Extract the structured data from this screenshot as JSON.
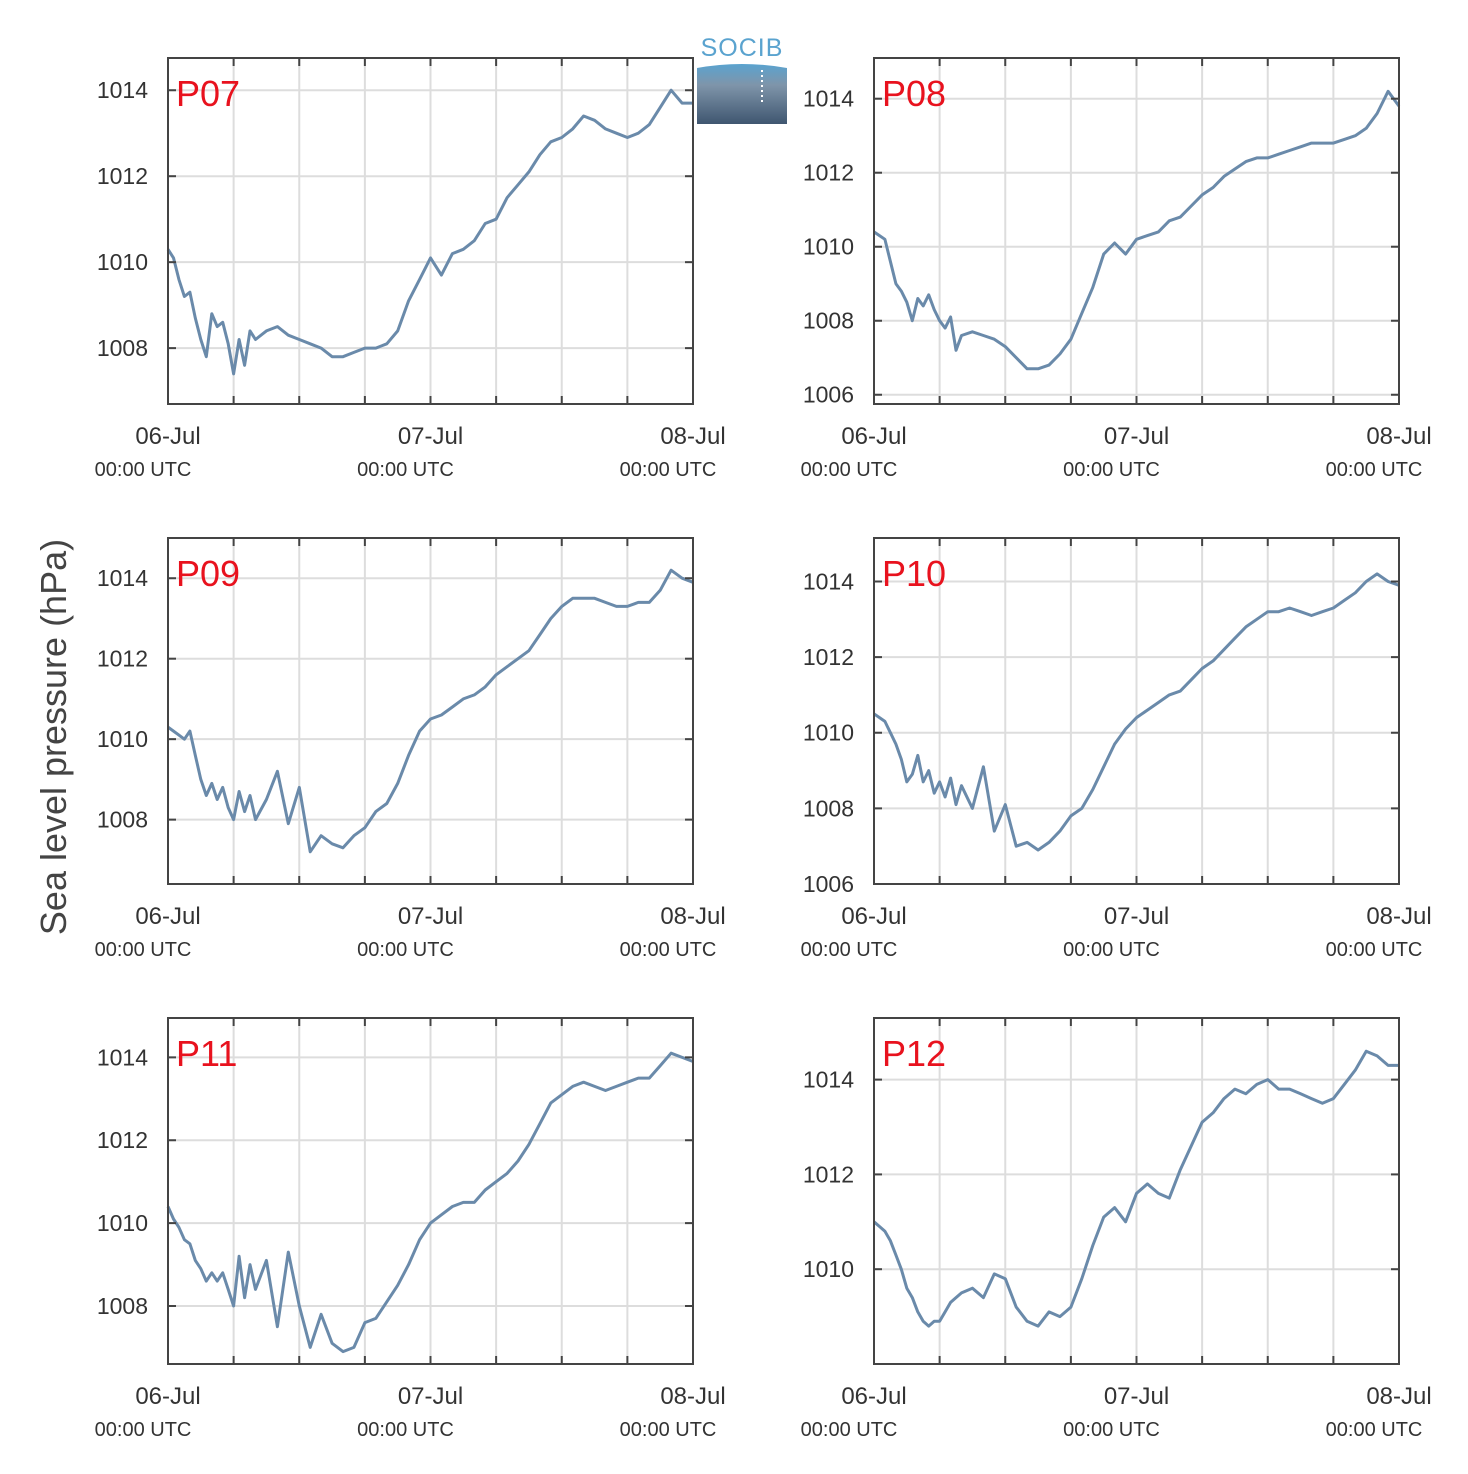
{
  "ylabel": "Sea level pressure (hPa)",
  "logo": {
    "text": "SOCIB",
    "colors": [
      "#5aa3cf",
      "#3f5670"
    ]
  },
  "style": {
    "line_color": "#6a8aaa",
    "grid_color": "#dddddd",
    "frame_color": "#444444",
    "label_color": "#e8121e"
  },
  "chart_data": [
    {
      "type": "line",
      "name": "P07",
      "x_unit": "hours since 06-Jul 00:00 UTC",
      "xlim": [
        0,
        48
      ],
      "ylim": [
        1006.7,
        1014.75
      ],
      "yticks": [
        1008,
        1010,
        1012,
        1014
      ],
      "xticks": [
        {
          "hour": 0,
          "date": "06-Jul",
          "time": "00:00 UTC"
        },
        {
          "hour": 24,
          "date": "07-Jul",
          "time": "00:00 UTC"
        },
        {
          "hour": 48,
          "date": "08-Jul",
          "time": "00:00 UTC"
        }
      ],
      "x": [
        0,
        0.5,
        1,
        1.5,
        2,
        2.5,
        3,
        3.5,
        4,
        4.5,
        5,
        5.5,
        6,
        6.5,
        7,
        7.5,
        8,
        9,
        10,
        11,
        12,
        13,
        14,
        15,
        16,
        17,
        18,
        19,
        20,
        21,
        22,
        23,
        24,
        25,
        26,
        27,
        28,
        29,
        30,
        31,
        32,
        33,
        34,
        35,
        36,
        37,
        38,
        39,
        40,
        41,
        42,
        43,
        44,
        45,
        46,
        47,
        48
      ],
      "y": [
        1010.3,
        1010.1,
        1009.6,
        1009.2,
        1009.3,
        1008.7,
        1008.2,
        1007.8,
        1008.8,
        1008.5,
        1008.6,
        1008.1,
        1007.4,
        1008.2,
        1007.6,
        1008.4,
        1008.2,
        1008.4,
        1008.5,
        1008.3,
        1008.2,
        1008.1,
        1008.0,
        1007.8,
        1007.8,
        1007.9,
        1008.0,
        1008.0,
        1008.1,
        1008.4,
        1009.1,
        1009.6,
        1010.1,
        1009.7,
        1010.2,
        1010.3,
        1010.5,
        1010.9,
        1011.0,
        1011.5,
        1011.8,
        1012.1,
        1012.5,
        1012.8,
        1012.9,
        1013.1,
        1013.4,
        1013.3,
        1013.1,
        1013.0,
        1012.9,
        1013.0,
        1013.2,
        1013.6,
        1014.0,
        1013.7,
        1013.7
      ]
    },
    {
      "type": "line",
      "name": "P08",
      "x_unit": "hours since 06-Jul 00:00 UTC",
      "xlim": [
        0,
        48
      ],
      "ylim": [
        1005.75,
        1015.1
      ],
      "yticks": [
        1006,
        1008,
        1010,
        1012,
        1014
      ],
      "xticks": [
        {
          "hour": 0,
          "date": "06-Jul",
          "time": "00:00 UTC"
        },
        {
          "hour": 24,
          "date": "07-Jul",
          "time": "00:00 UTC"
        },
        {
          "hour": 48,
          "date": "08-Jul",
          "time": "00:00 UTC"
        }
      ],
      "x": [
        0,
        0.5,
        1,
        1.5,
        2,
        2.5,
        3,
        3.5,
        4,
        4.5,
        5,
        5.5,
        6,
        6.5,
        7,
        7.5,
        8,
        9,
        10,
        11,
        12,
        13,
        14,
        15,
        16,
        17,
        18,
        19,
        20,
        21,
        22,
        23,
        24,
        25,
        26,
        27,
        28,
        29,
        30,
        31,
        32,
        33,
        34,
        35,
        36,
        37,
        38,
        39,
        40,
        41,
        42,
        43,
        44,
        45,
        46,
        47,
        48
      ],
      "y": [
        1010.4,
        1010.3,
        1010.2,
        1009.6,
        1009.0,
        1008.8,
        1008.5,
        1008.0,
        1008.6,
        1008.4,
        1008.7,
        1008.3,
        1008.0,
        1007.8,
        1008.1,
        1007.2,
        1007.6,
        1007.7,
        1007.6,
        1007.5,
        1007.3,
        1007.0,
        1006.7,
        1006.7,
        1006.8,
        1007.1,
        1007.5,
        1008.2,
        1008.9,
        1009.8,
        1010.1,
        1009.8,
        1010.2,
        1010.3,
        1010.4,
        1010.7,
        1010.8,
        1011.1,
        1011.4,
        1011.6,
        1011.9,
        1012.1,
        1012.3,
        1012.4,
        1012.4,
        1012.5,
        1012.6,
        1012.7,
        1012.8,
        1012.8,
        1012.8,
        1012.9,
        1013.0,
        1013.2,
        1013.6,
        1014.2,
        1013.8
      ]
    },
    {
      "type": "line",
      "name": "P09",
      "x_unit": "hours since 06-Jul 00:00 UTC",
      "xlim": [
        0,
        48
      ],
      "ylim": [
        1006.4,
        1015.0
      ],
      "yticks": [
        1008,
        1010,
        1012,
        1014
      ],
      "xticks": [
        {
          "hour": 0,
          "date": "06-Jul",
          "time": "00:00 UTC"
        },
        {
          "hour": 24,
          "date": "07-Jul",
          "time": "00:00 UTC"
        },
        {
          "hour": 48,
          "date": "08-Jul",
          "time": "00:00 UTC"
        }
      ],
      "x": [
        0,
        0.5,
        1,
        1.5,
        2,
        2.5,
        3,
        3.5,
        4,
        4.5,
        5,
        5.5,
        6,
        6.5,
        7,
        7.5,
        8,
        9,
        10,
        11,
        12,
        13,
        14,
        15,
        16,
        17,
        18,
        19,
        20,
        21,
        22,
        23,
        24,
        25,
        26,
        27,
        28,
        29,
        30,
        31,
        32,
        33,
        34,
        35,
        36,
        37,
        38,
        39,
        40,
        41,
        42,
        43,
        44,
        45,
        46,
        47,
        48
      ],
      "y": [
        1010.3,
        1010.2,
        1010.1,
        1010.0,
        1010.2,
        1009.6,
        1009.0,
        1008.6,
        1008.9,
        1008.5,
        1008.8,
        1008.3,
        1008.0,
        1008.7,
        1008.2,
        1008.6,
        1008.0,
        1008.5,
        1009.2,
        1007.9,
        1008.8,
        1007.2,
        1007.6,
        1007.4,
        1007.3,
        1007.6,
        1007.8,
        1008.2,
        1008.4,
        1008.9,
        1009.6,
        1010.2,
        1010.5,
        1010.6,
        1010.8,
        1011.0,
        1011.1,
        1011.3,
        1011.6,
        1011.8,
        1012.0,
        1012.2,
        1012.6,
        1013.0,
        1013.3,
        1013.5,
        1013.5,
        1013.5,
        1013.4,
        1013.3,
        1013.3,
        1013.4,
        1013.4,
        1013.7,
        1014.2,
        1014.0,
        1013.9
      ]
    },
    {
      "type": "line",
      "name": "P10",
      "x_unit": "hours since 06-Jul 00:00 UTC",
      "xlim": [
        0,
        48
      ],
      "ylim": [
        1006.0,
        1015.15
      ],
      "yticks": [
        1006,
        1008,
        1010,
        1012,
        1014
      ],
      "xticks": [
        {
          "hour": 0,
          "date": "06-Jul",
          "time": "00:00 UTC"
        },
        {
          "hour": 24,
          "date": "07-Jul",
          "time": "00:00 UTC"
        },
        {
          "hour": 48,
          "date": "08-Jul",
          "time": "00:00 UTC"
        }
      ],
      "x": [
        0,
        0.5,
        1,
        1.5,
        2,
        2.5,
        3,
        3.5,
        4,
        4.5,
        5,
        5.5,
        6,
        6.5,
        7,
        7.5,
        8,
        9,
        10,
        11,
        12,
        13,
        14,
        15,
        16,
        17,
        18,
        19,
        20,
        21,
        22,
        23,
        24,
        25,
        26,
        27,
        28,
        29,
        30,
        31,
        32,
        33,
        34,
        35,
        36,
        37,
        38,
        39,
        40,
        41,
        42,
        43,
        44,
        45,
        46,
        47,
        48
      ],
      "y": [
        1010.5,
        1010.4,
        1010.3,
        1010.0,
        1009.7,
        1009.3,
        1008.7,
        1008.9,
        1009.4,
        1008.7,
        1009.0,
        1008.4,
        1008.7,
        1008.3,
        1008.8,
        1008.1,
        1008.6,
        1008.0,
        1009.1,
        1007.4,
        1008.1,
        1007.0,
        1007.1,
        1006.9,
        1007.1,
        1007.4,
        1007.8,
        1008.0,
        1008.5,
        1009.1,
        1009.7,
        1010.1,
        1010.4,
        1010.6,
        1010.8,
        1011.0,
        1011.1,
        1011.4,
        1011.7,
        1011.9,
        1012.2,
        1012.5,
        1012.8,
        1013.0,
        1013.2,
        1013.2,
        1013.3,
        1013.2,
        1013.1,
        1013.2,
        1013.3,
        1013.5,
        1013.7,
        1014.0,
        1014.2,
        1014.0,
        1013.9
      ]
    },
    {
      "type": "line",
      "name": "P11",
      "x_unit": "hours since 06-Jul 00:00 UTC",
      "xlim": [
        0,
        48
      ],
      "ylim": [
        1006.6,
        1014.95
      ],
      "yticks": [
        1008,
        1010,
        1012,
        1014
      ],
      "xticks": [
        {
          "hour": 0,
          "date": "06-Jul",
          "time": "00:00 UTC"
        },
        {
          "hour": 24,
          "date": "07-Jul",
          "time": "00:00 UTC"
        },
        {
          "hour": 48,
          "date": "08-Jul",
          "time": "00:00 UTC"
        }
      ],
      "x": [
        0,
        0.5,
        1,
        1.5,
        2,
        2.5,
        3,
        3.5,
        4,
        4.5,
        5,
        5.5,
        6,
        6.5,
        7,
        7.5,
        8,
        9,
        10,
        11,
        12,
        13,
        14,
        15,
        16,
        17,
        18,
        19,
        20,
        21,
        22,
        23,
        24,
        25,
        26,
        27,
        28,
        29,
        30,
        31,
        32,
        33,
        34,
        35,
        36,
        37,
        38,
        39,
        40,
        41,
        42,
        43,
        44,
        45,
        46,
        47,
        48
      ],
      "y": [
        1010.4,
        1010.1,
        1009.9,
        1009.6,
        1009.5,
        1009.1,
        1008.9,
        1008.6,
        1008.8,
        1008.6,
        1008.8,
        1008.4,
        1008.0,
        1009.2,
        1008.2,
        1009.0,
        1008.4,
        1009.1,
        1007.5,
        1009.3,
        1008.0,
        1007.0,
        1007.8,
        1007.1,
        1006.9,
        1007.0,
        1007.6,
        1007.7,
        1008.1,
        1008.5,
        1009.0,
        1009.6,
        1010.0,
        1010.2,
        1010.4,
        1010.5,
        1010.5,
        1010.8,
        1011.0,
        1011.2,
        1011.5,
        1011.9,
        1012.4,
        1012.9,
        1013.1,
        1013.3,
        1013.4,
        1013.3,
        1013.2,
        1013.3,
        1013.4,
        1013.5,
        1013.5,
        1013.8,
        1014.1,
        1014.0,
        1013.9
      ]
    },
    {
      "type": "line",
      "name": "P12",
      "x_unit": "hours since 06-Jul 00:00 UTC",
      "xlim": [
        0,
        48
      ],
      "ylim": [
        1008.0,
        1015.3
      ],
      "yticks": [
        1010,
        1012,
        1014
      ],
      "xticks": [
        {
          "hour": 0,
          "date": "06-Jul",
          "time": "00:00 UTC"
        },
        {
          "hour": 24,
          "date": "07-Jul",
          "time": "00:00 UTC"
        },
        {
          "hour": 48,
          "date": "08-Jul",
          "time": "00:00 UTC"
        }
      ],
      "x": [
        0,
        0.5,
        1,
        1.5,
        2,
        2.5,
        3,
        3.5,
        4,
        4.5,
        5,
        5.5,
        6,
        6.5,
        7,
        7.5,
        8,
        9,
        10,
        11,
        12,
        13,
        14,
        15,
        16,
        17,
        18,
        19,
        20,
        21,
        22,
        23,
        24,
        25,
        26,
        27,
        28,
        29,
        30,
        31,
        32,
        33,
        34,
        35,
        36,
        37,
        38,
        39,
        40,
        41,
        42,
        43,
        44,
        45,
        46,
        47,
        48
      ],
      "y": [
        1011.0,
        1010.9,
        1010.8,
        1010.6,
        1010.3,
        1010.0,
        1009.6,
        1009.4,
        1009.1,
        1008.9,
        1008.8,
        1008.9,
        1008.9,
        1009.1,
        1009.3,
        1009.4,
        1009.5,
        1009.6,
        1009.4,
        1009.9,
        1009.8,
        1009.2,
        1008.9,
        1008.8,
        1009.1,
        1009.0,
        1009.2,
        1009.8,
        1010.5,
        1011.1,
        1011.3,
        1011.0,
        1011.6,
        1011.8,
        1011.6,
        1011.5,
        1012.1,
        1012.6,
        1013.1,
        1013.3,
        1013.6,
        1013.8,
        1013.7,
        1013.9,
        1014.0,
        1013.8,
        1013.8,
        1013.7,
        1013.6,
        1013.5,
        1013.6,
        1013.9,
        1014.2,
        1014.6,
        1014.5,
        1014.3,
        1014.3
      ]
    }
  ]
}
